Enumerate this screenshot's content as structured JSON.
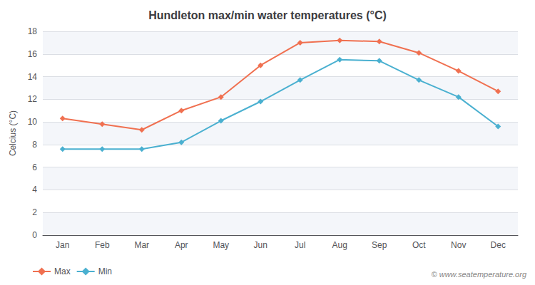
{
  "chart_data": {
    "type": "line",
    "title": "Hundleton max/min water temperatures (°C)",
    "categories": [
      "Jan",
      "Feb",
      "Mar",
      "Apr",
      "May",
      "Jun",
      "Jul",
      "Aug",
      "Sep",
      "Oct",
      "Nov",
      "Dec"
    ],
    "series": [
      {
        "name": "Max",
        "color": "#f07050",
        "values": [
          10.3,
          9.8,
          9.3,
          11.0,
          12.2,
          15.0,
          17.0,
          17.2,
          17.1,
          16.1,
          14.5,
          12.7
        ]
      },
      {
        "name": "Min",
        "color": "#4ab0d0",
        "values": [
          7.6,
          7.6,
          7.6,
          8.2,
          10.1,
          11.8,
          13.7,
          15.5,
          15.4,
          13.7,
          12.2,
          9.6
        ]
      }
    ],
    "ylabel": "Celcius (°C)",
    "ylim": [
      0,
      18
    ],
    "yticks": [
      0,
      2,
      4,
      6,
      8,
      10,
      12,
      14,
      16,
      18
    ],
    "grid": true,
    "legend": "lower left",
    "marker": "diamond",
    "annotations": [
      "© www.seatemperature.org"
    ]
  }
}
